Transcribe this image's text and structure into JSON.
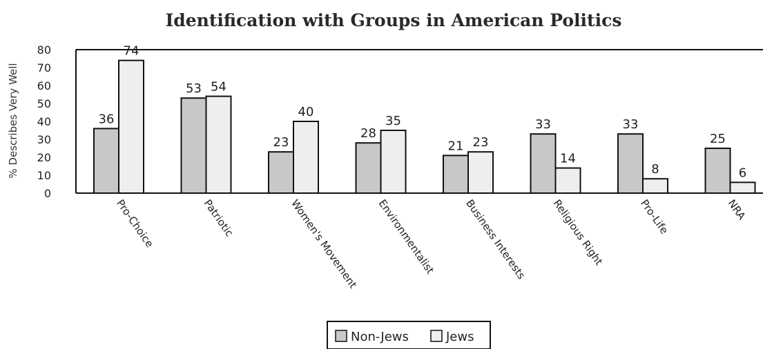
{
  "chart_data": {
    "type": "bar",
    "title": "Identification with Groups in American Politics",
    "ylabel": "% Describes Very Well",
    "xlabel": "",
    "ylim": [
      0,
      80
    ],
    "yticks": [
      0,
      10,
      20,
      30,
      40,
      50,
      60,
      70,
      80
    ],
    "categories": [
      "Pro-Choice",
      "Patriotic",
      "Women's Movement",
      "Environmentalist",
      "Business Interests",
      "Religious Right",
      "Pro-Life",
      "NRA"
    ],
    "series": [
      {
        "name": "Non-Jews",
        "values": [
          36,
          53,
          23,
          28,
          21,
          33,
          33,
          25
        ],
        "color": "#c8c8c8"
      },
      {
        "name": "Jews",
        "values": [
          74,
          54,
          40,
          35,
          23,
          14,
          8,
          6
        ],
        "color": "#eeeeee"
      }
    ],
    "legend_position": "bottom-center",
    "grid": false
  }
}
